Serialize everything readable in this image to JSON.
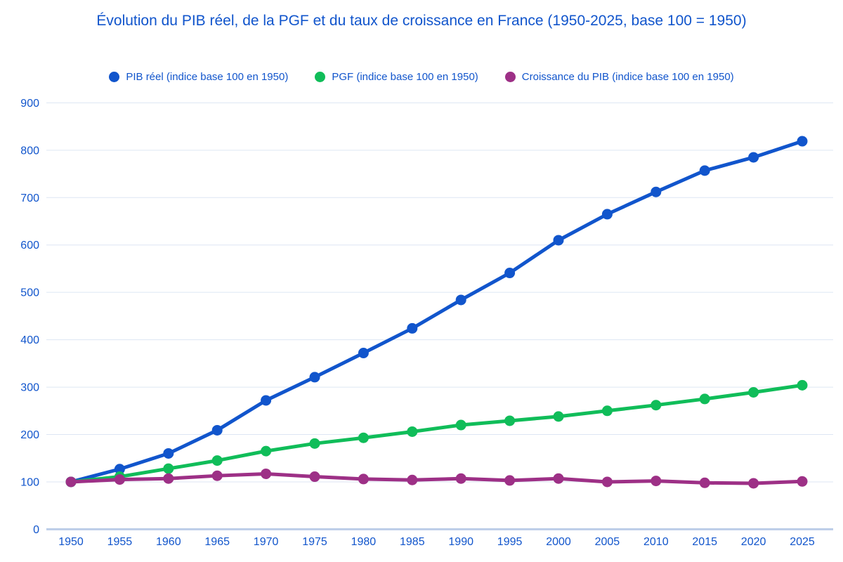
{
  "title": "Évolution du PIB réel, de la PGF et du taux de croissance en France (1950-2025, base 100 = 1950)",
  "colors": {
    "text_blue": "#1155cc",
    "gridline": "#dde6f3",
    "axis_line": "#bccde8",
    "background": "#ffffff"
  },
  "chart_data": {
    "type": "line",
    "title": "Évolution du PIB réel, de la PGF et du taux de croissance en France (1950-2025, base 100 = 1950)",
    "x": [
      1950,
      1955,
      1960,
      1965,
      1970,
      1975,
      1980,
      1985,
      1990,
      1995,
      2000,
      2005,
      2010,
      2015,
      2020,
      2025
    ],
    "series": [
      {
        "id": "pib-reel",
        "name": "PIB réel (indice base 100 en 1950)",
        "color": "#1155cc",
        "values": [
          100,
          127,
          160,
          209,
          272,
          321,
          372,
          424,
          484,
          541,
          610,
          665,
          712,
          757,
          785,
          819
        ]
      },
      {
        "id": "pgf",
        "name": "PGF (indice base 100 en 1950)",
        "color": "#10bd59",
        "values": [
          100,
          111,
          128,
          145,
          165,
          181,
          193,
          206,
          220,
          229,
          238,
          250,
          262,
          275,
          289,
          304
        ]
      },
      {
        "id": "croissance-pib",
        "name": "Croissance du PIB (indice base 100 en 1950)",
        "color": "#9d3086",
        "values": [
          100,
          105,
          107,
          113,
          117,
          111,
          106,
          104,
          107,
          103,
          107,
          100,
          102,
          98,
          97,
          101
        ]
      }
    ],
    "xlabel": "",
    "ylabel": "",
    "ylim": [
      0,
      900
    ],
    "y_tick_step": 100,
    "y_tick_labels": [
      "0",
      "100",
      "200",
      "300",
      "400",
      "500",
      "600",
      "700",
      "800",
      "900"
    ],
    "x_tick_labels": [
      "1950",
      "1955",
      "1960",
      "1965",
      "1970",
      "1975",
      "1980",
      "1985",
      "1990",
      "1995",
      "2000",
      "2005",
      "2010",
      "2015",
      "2020",
      "2025"
    ],
    "grid": true,
    "legend_position": "top",
    "marker": "circle"
  }
}
